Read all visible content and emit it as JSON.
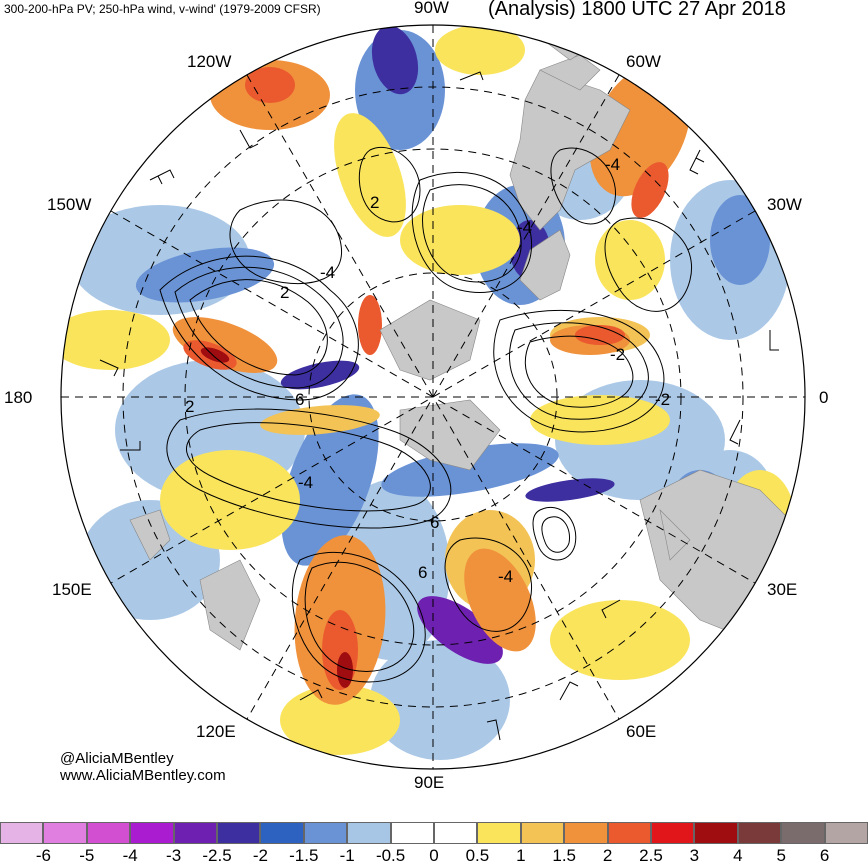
{
  "header": {
    "left": "300-200-hPa PV; 250-hPa wind, v-wind' (1979-2009 CFSR)",
    "right": "(Analysis) 1800 UTC 27 Apr 2018"
  },
  "longitude_labels": {
    "lon_90w": "90W",
    "lon_120w": "120W",
    "lon_60w": "60W",
    "lon_150w": "150W",
    "lon_30w": "30W",
    "lon_180": "180",
    "lon_0": "0",
    "lon_150e": "150E",
    "lon_30e": "30E",
    "lon_120e": "120E",
    "lon_60e": "60E",
    "lon_90e": "90E"
  },
  "credit": {
    "handle": "@AliciaMBentley",
    "site": "www.AliciaMBentley.com"
  },
  "contour_labels": [
    "-4",
    "2",
    "-4",
    "6",
    "2",
    "-2",
    "-4",
    "6",
    "6",
    "-4",
    "2",
    "-2",
    "-4"
  ],
  "colorbar": {
    "ticks": [
      "-6",
      "-5",
      "-4",
      "-3",
      "-2.5",
      "-2",
      "-1.5",
      "-1",
      "-0.5",
      "0",
      "0.5",
      "1",
      "1.5",
      "2",
      "2.5",
      "3",
      "4",
      "5",
      "6"
    ],
    "colors": [
      "#e6b3e6",
      "#e07fe0",
      "#d24fd2",
      "#aa1ccf",
      "#6e20b0",
      "#3d2fa0",
      "#2e62c0",
      "#6a93d6",
      "#a7c6e6",
      "#ffffff",
      "#ffffff",
      "#f9e45c",
      "#f3c355",
      "#f0913c",
      "#ea5a2e",
      "#e0161a",
      "#a00d10",
      "#7a3a3a",
      "#7a6c6c",
      "#b4a5a5"
    ]
  },
  "colors": {
    "land": "#c8c8c8",
    "positive": "#f0913c",
    "negative": "#6a93d6"
  }
}
